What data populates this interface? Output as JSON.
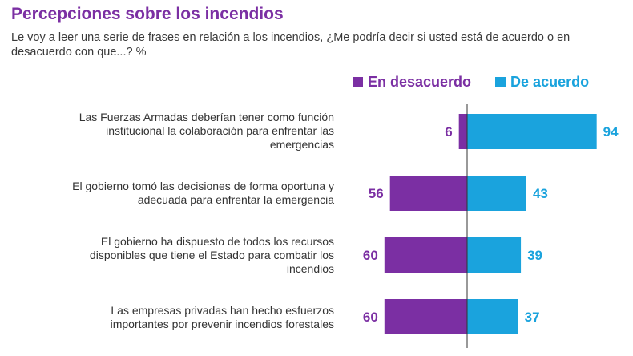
{
  "title": "Percepciones sobre los incendios",
  "subtitle": "Le voy a leer una serie de frases en relación a los incendios, ¿Me podría decir si usted está de acuerdo o en desacuerdo con que...? %",
  "colors": {
    "disagree": "#7b2fa3",
    "agree": "#1aa3dd",
    "title": "#7b2fa3",
    "axis": "#333333"
  },
  "chart_data": {
    "type": "bar",
    "orientation": "horizontal-diverging",
    "categories": [
      "Las Fuerzas Armadas deberían tener como función institucional la colaboración para enfrentar las emergencias",
      "El gobierno tomó las decisiones de forma oportuna y adecuada para enfrentar la emergencia",
      "El gobierno ha dispuesto de todos los recursos disponibles que tiene el Estado para combatir los incendios",
      "Las empresas privadas han hecho esfuerzos importantes por prevenir incendios forestales"
    ],
    "series": [
      {
        "name": "En desacuerdo",
        "values": [
          6,
          56,
          60,
          60
        ]
      },
      {
        "name": "De acuerdo",
        "values": [
          94,
          43,
          39,
          37
        ]
      }
    ],
    "legend": "top-right",
    "grid": false
  }
}
